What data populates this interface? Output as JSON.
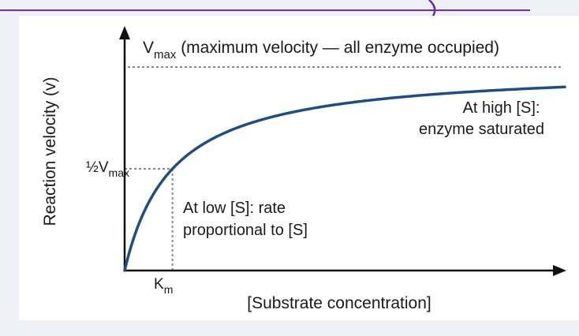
{
  "chart_data": {
    "type": "line",
    "title": "",
    "xlabel": "[Substrate concentration]",
    "ylabel": "Reaction velocity (v)",
    "model": "michaelis-menten",
    "vmax_fraction_of_axis": 1.0,
    "km": 1,
    "x_range": [
      0,
      9.2
    ],
    "y_range": [
      0,
      1
    ],
    "series": [
      {
        "color": "#1f4e85"
      }
    ],
    "ticks": {
      "vmax": {
        "base": "V",
        "sub": "max"
      },
      "half_vmax": {
        "prefix": "½V",
        "sub": "max"
      },
      "km": {
        "base": "K",
        "sub": "m"
      }
    },
    "annotations": {
      "vmax_line": {
        "base": "V",
        "sub": "max",
        "text": " (maximum velocity — all enzyme occupied)"
      },
      "high": [
        "At high [S]:",
        "enzyme saturated"
      ],
      "low": [
        "At low [S]: rate",
        "proportional to [S]"
      ]
    },
    "colors": {
      "curve": "#1f4e85",
      "guide": "#8a8a8a",
      "axis": "#111111",
      "panel": "#ffffff",
      "page": "#eef0f6",
      "accent": "#6a2fa0"
    }
  }
}
